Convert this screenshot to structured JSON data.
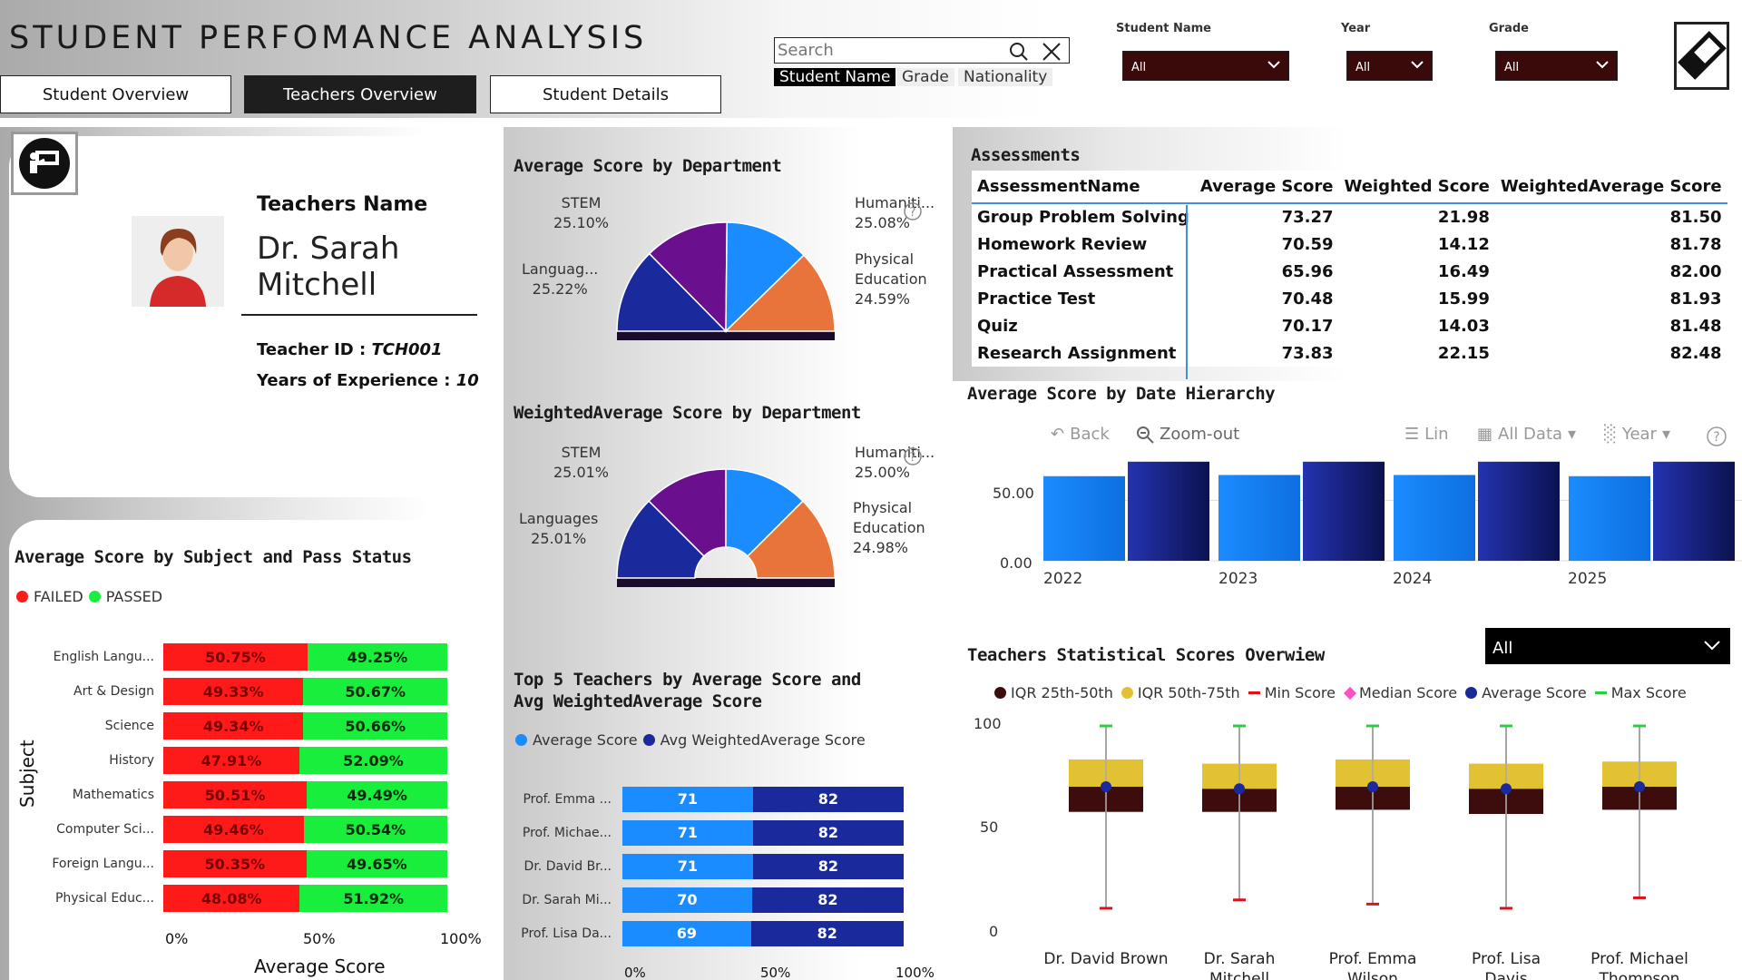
{
  "header": {
    "title": "STUDENT PERFOMANCE ANALYSIS",
    "tabs": [
      {
        "label": "Student Overview",
        "active": false
      },
      {
        "label": "Teachers Overview",
        "active": true
      },
      {
        "label": "Student Details",
        "active": false
      }
    ],
    "search": {
      "placeholder": "Search",
      "chips": [
        "Student Name",
        "Grade",
        "Nationality"
      ]
    },
    "filters": [
      {
        "label": "Student Name",
        "value": "All"
      },
      {
        "label": "Year",
        "value": "All"
      },
      {
        "label": "Grade",
        "value": "All"
      }
    ]
  },
  "teacher": {
    "name_label": "Teachers Name",
    "name": "Dr. Sarah Mitchell",
    "id_label": "Teacher ID : ",
    "id": "TCH001",
    "exp_label": "Years of Experience : ",
    "exp": "10"
  },
  "dept_avg": {
    "title": "Average Score by Department",
    "labels": [
      {
        "name": "STEM",
        "pct": "25.10%"
      },
      {
        "name": "Languag...",
        "pct": "25.22%"
      },
      {
        "name": "Humaniti...",
        "pct": "25.08%"
      },
      {
        "name": "Physical Education",
        "pct": "24.59%"
      }
    ]
  },
  "dept_wavg": {
    "title": "WeightedAverage Score by Department",
    "labels": [
      {
        "name": "STEM",
        "pct": "25.01%"
      },
      {
        "name": "Languages",
        "pct": "25.01%"
      },
      {
        "name": "Humaniti...",
        "pct": "25.00%"
      },
      {
        "name": "Physical Education",
        "pct": "24.98%"
      }
    ]
  },
  "assessments": {
    "title": "Assessments",
    "columns": [
      "AssessmentName",
      "Average Score",
      "Weighted Score",
      "WeightedAverage Score"
    ],
    "rows": [
      [
        "Group Problem Solving",
        "73.27",
        "21.98",
        "81.50"
      ],
      [
        "Homework Review",
        "70.59",
        "14.12",
        "81.78"
      ],
      [
        "Practical Assessment",
        "65.96",
        "16.49",
        "82.00"
      ],
      [
        "Practice Test",
        "70.48",
        "15.99",
        "81.93"
      ],
      [
        "Quiz",
        "70.17",
        "14.03",
        "81.48"
      ],
      [
        "Research Assignment",
        "73.83",
        "22.15",
        "82.48"
      ]
    ]
  },
  "date_chart": {
    "title": "Average Score by Date Hierarchy",
    "toolbar": [
      "Back",
      "Zoom-out",
      "Lin",
      "All Data",
      "Year"
    ],
    "yticks": [
      "50.00",
      "0.00"
    ],
    "years": [
      "2022",
      "2023",
      "2024",
      "2025"
    ]
  },
  "subject_chart": {
    "title": "Average Score by Subject and Pass Status",
    "legend": [
      "FAILED",
      "PASSED"
    ],
    "ylabel": "Subject",
    "xlabel": "Average Score",
    "xticks": [
      "0%",
      "50%",
      "100%"
    ]
  },
  "top5": {
    "title": "Top 5 Teachers by Average Score and Avg WeightedAverage Score",
    "legend": [
      "Average Score",
      "Avg WeightedAverage Score"
    ],
    "xticks": [
      "0%",
      "50%",
      "100%"
    ]
  },
  "stats": {
    "title": "Teachers Statistical Scores Overwiew",
    "dropdown": "All",
    "legend": [
      "IQR 25th-50th",
      "IQR 50th-75th",
      "Min Score",
      "Median Score",
      "Average Score",
      "Max Score"
    ],
    "yticks": [
      "100",
      "50",
      "0"
    ]
  },
  "chart_data": [
    {
      "type": "pie",
      "title": "Average Score by Department",
      "categories": [
        "Languages",
        "STEM",
        "Humanities",
        "Physical Education"
      ],
      "values": [
        25.22,
        25.1,
        25.08,
        24.59
      ],
      "colors": [
        "#1a2a9c",
        "#6a0f8e",
        "#1a8cff",
        "#e8743b"
      ]
    },
    {
      "type": "pie",
      "title": "WeightedAverage Score by Department",
      "categories": [
        "Languages",
        "STEM",
        "Humanities",
        "Physical Education"
      ],
      "values": [
        25.01,
        25.01,
        25.0,
        24.98
      ],
      "colors": [
        "#1a2a9c",
        "#6a0f8e",
        "#1a8cff",
        "#e8743b"
      ]
    },
    {
      "type": "bar",
      "title": "Average Score by Date Hierarchy",
      "categories": [
        "2022",
        "2022",
        "2023",
        "2023",
        "2024",
        "2024",
        "2025",
        "2025"
      ],
      "values": [
        70,
        82,
        71,
        82,
        71,
        82,
        70,
        82
      ],
      "ylim": [
        0,
        82
      ],
      "colors": [
        "#1a8cff",
        "#1a2a9c"
      ]
    },
    {
      "type": "bar",
      "title": "Average Score by Subject and Pass Status",
      "orientation": "horizontal-stacked-100",
      "categories": [
        "English Langu...",
        "Art & Design",
        "Science",
        "History",
        "Mathematics",
        "Computer Sci...",
        "Foreign Langu...",
        "Physical Educ..."
      ],
      "series": [
        {
          "name": "FAILED",
          "values": [
            50.75,
            49.33,
            49.34,
            47.91,
            50.51,
            49.46,
            50.35,
            48.08
          ],
          "labels": [
            "50.75%",
            "49.33%",
            "49.34%",
            "47.91%",
            "50.51%",
            "49.46%",
            "50.35%",
            "48.08%"
          ],
          "color": "#ff1a1a"
        },
        {
          "name": "PASSED",
          "values": [
            49.25,
            50.67,
            50.66,
            52.09,
            49.49,
            50.54,
            49.65,
            51.92
          ],
          "labels": [
            "49.25%",
            "50.67%",
            "50.66%",
            "52.09%",
            "49.49%",
            "50.54%",
            "49.65%",
            "51.92%"
          ],
          "color": "#1aee3c"
        }
      ]
    },
    {
      "type": "bar",
      "title": "Top 5 Teachers by Average Score and Avg WeightedAverage Score",
      "orientation": "horizontal-stacked-100",
      "categories": [
        "Prof. Emma ...",
        "Prof. Michae...",
        "Dr. David Br...",
        "Dr. Sarah Mi...",
        "Prof. Lisa Da..."
      ],
      "series": [
        {
          "name": "Average Score",
          "values": [
            71,
            71,
            71,
            70,
            69
          ],
          "color": "#1a8cff"
        },
        {
          "name": "Avg WeightedAverage Score",
          "values": [
            82,
            82,
            82,
            82,
            82
          ],
          "color": "#1a2a9c"
        }
      ]
    },
    {
      "type": "scatter",
      "title": "Teachers Statistical Scores Overwiew",
      "categories": [
        "Dr. David Brown",
        "Dr. Sarah Mitchell",
        "Prof. Emma Wilson",
        "Prof. Lisa Davis",
        "Prof. Michael Thompson"
      ],
      "min": [
        13,
        17,
        15,
        13,
        18
      ],
      "q1": [
        59,
        59,
        60,
        58,
        60
      ],
      "median": [
        71,
        70,
        71,
        70,
        71
      ],
      "q3": [
        84,
        82,
        84,
        82,
        83
      ],
      "average": [
        71,
        70,
        71,
        70,
        71
      ],
      "max": [
        100,
        100,
        100,
        100,
        100
      ],
      "ylim": [
        0,
        100
      ],
      "colors": {
        "iqr_low": "#3d0d0d",
        "iqr_high": "#e2c233",
        "min": "#e0101a",
        "median": "#ff4fc7",
        "average": "#1a2a9c",
        "max": "#2ecc40"
      }
    }
  ]
}
